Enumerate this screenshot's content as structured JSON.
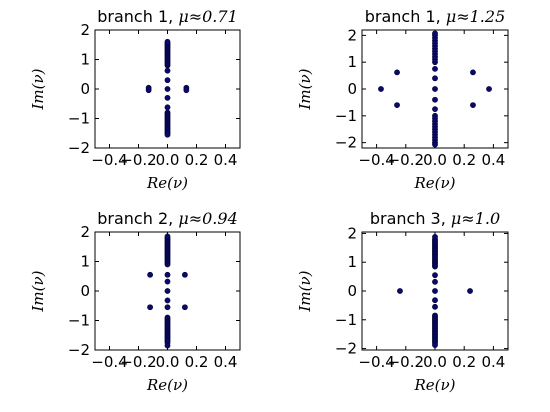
{
  "chart_data": [
    {
      "type": "scatter",
      "title": "branch 1, μ≈0.71",
      "title_text": "branch 1, ",
      "title_math": "μ≈0.71",
      "xlabel": "Re(ν)",
      "ylabel": "Im(ν)",
      "xlim": [
        -0.5,
        0.5
      ],
      "ylim": [
        -2,
        2
      ],
      "xticks": [
        "−0.4",
        "−0.2",
        "0.0",
        "0.2",
        "0.4"
      ],
      "yticks": [
        "−2",
        "−1",
        "0",
        "1",
        "2"
      ],
      "xtick_values": [
        -0.4,
        -0.2,
        0.0,
        0.2,
        0.4
      ],
      "ytick_values": [
        -2,
        -1,
        0,
        1,
        2
      ],
      "points": [
        [
          -0.13,
          0.04
        ],
        [
          -0.13,
          -0.04
        ],
        [
          0.13,
          0.04
        ],
        [
          0.13,
          -0.04
        ],
        [
          0.0,
          0.0
        ],
        [
          0.0,
          0.3
        ],
        [
          0.0,
          -0.3
        ],
        [
          0.0,
          0.62
        ],
        [
          0.0,
          -0.62
        ],
        [
          0.0,
          0.8
        ],
        [
          0.0,
          0.85
        ],
        [
          0.0,
          0.9
        ],
        [
          0.0,
          0.95
        ],
        [
          0.0,
          1.0
        ],
        [
          0.0,
          1.05
        ],
        [
          0.0,
          1.1
        ],
        [
          0.0,
          1.15
        ],
        [
          0.0,
          1.2
        ],
        [
          0.0,
          1.25
        ],
        [
          0.0,
          1.3
        ],
        [
          0.0,
          1.35
        ],
        [
          0.0,
          1.4
        ],
        [
          0.0,
          1.45
        ],
        [
          0.0,
          1.5
        ],
        [
          0.0,
          1.55
        ],
        [
          0.0,
          1.6
        ],
        [
          0.0,
          -0.8
        ],
        [
          0.0,
          -0.85
        ],
        [
          0.0,
          -0.9
        ],
        [
          0.0,
          -0.95
        ],
        [
          0.0,
          -1.0
        ],
        [
          0.0,
          -1.05
        ],
        [
          0.0,
          -1.1
        ],
        [
          0.0,
          -1.15
        ],
        [
          0.0,
          -1.2
        ],
        [
          0.0,
          -1.25
        ],
        [
          0.0,
          -1.3
        ],
        [
          0.0,
          -1.35
        ],
        [
          0.0,
          -1.4
        ],
        [
          0.0,
          -1.45
        ],
        [
          0.0,
          -1.5
        ],
        [
          0.0,
          -1.55
        ]
      ]
    },
    {
      "type": "scatter",
      "title": "branch 1, μ≈1.25",
      "title_text": "branch 1, ",
      "title_math": "μ≈1.25",
      "xlabel": "Re(ν)",
      "ylabel": "Im(ν)",
      "xlim": [
        -0.5,
        0.5
      ],
      "ylim": [
        -2.2,
        2.2
      ],
      "xticks": [
        "−0.4",
        "−0.2",
        "0.0",
        "0.2",
        "0.4"
      ],
      "yticks": [
        "−2",
        "−1",
        "0",
        "1",
        "2"
      ],
      "xtick_values": [
        -0.4,
        -0.2,
        0.0,
        0.2,
        0.4
      ],
      "ytick_values": [
        -2,
        -1,
        0,
        1,
        2
      ],
      "points": [
        [
          -0.37,
          0.0
        ],
        [
          0.37,
          0.0
        ],
        [
          -0.26,
          0.62
        ],
        [
          -0.26,
          -0.6
        ],
        [
          0.26,
          0.62
        ],
        [
          0.26,
          -0.6
        ],
        [
          0.0,
          0.0
        ],
        [
          0.0,
          0.4
        ],
        [
          0.0,
          -0.4
        ],
        [
          0.0,
          0.75
        ],
        [
          0.0,
          -0.75
        ],
        [
          0.0,
          1.0
        ],
        [
          0.0,
          1.1
        ],
        [
          0.0,
          1.2
        ],
        [
          0.0,
          1.3
        ],
        [
          0.0,
          1.4
        ],
        [
          0.0,
          1.5
        ],
        [
          0.0,
          1.6
        ],
        [
          0.0,
          1.7
        ],
        [
          0.0,
          1.8
        ],
        [
          0.0,
          1.9
        ],
        [
          0.0,
          2.0
        ],
        [
          0.0,
          2.07
        ],
        [
          0.0,
          -1.0
        ],
        [
          0.0,
          -1.1
        ],
        [
          0.0,
          -1.2
        ],
        [
          0.0,
          -1.3
        ],
        [
          0.0,
          -1.4
        ],
        [
          0.0,
          -1.5
        ],
        [
          0.0,
          -1.6
        ],
        [
          0.0,
          -1.7
        ],
        [
          0.0,
          -1.8
        ],
        [
          0.0,
          -1.9
        ],
        [
          0.0,
          -2.0
        ],
        [
          0.0,
          -2.07
        ]
      ]
    },
    {
      "type": "scatter",
      "title": "branch 2, μ≈0.94",
      "title_text": "branch 2, ",
      "title_math": "μ≈0.94",
      "xlabel": "Re(ν)",
      "ylabel": "Im(ν)",
      "xlim": [
        -0.5,
        0.5
      ],
      "ylim": [
        -2,
        2
      ],
      "xticks": [
        "−0.4",
        "−0.2",
        "0.0",
        "0.2",
        "0.4"
      ],
      "yticks": [
        "−2",
        "−1",
        "0",
        "1",
        "2"
      ],
      "xtick_values": [
        -0.4,
        -0.2,
        0.0,
        0.2,
        0.4
      ],
      "ytick_values": [
        -2,
        -1,
        0,
        1,
        2
      ],
      "points": [
        [
          -0.12,
          0.55
        ],
        [
          0.12,
          0.55
        ],
        [
          -0.12,
          -0.55
        ],
        [
          0.12,
          -0.55
        ],
        [
          0.0,
          0.0
        ],
        [
          0.0,
          0.32
        ],
        [
          0.0,
          -0.32
        ],
        [
          0.0,
          0.55
        ],
        [
          0.0,
          -0.55
        ],
        [
          0.0,
          0.9
        ],
        [
          0.0,
          0.95
        ],
        [
          0.0,
          1.0
        ],
        [
          0.0,
          1.05
        ],
        [
          0.0,
          1.1
        ],
        [
          0.0,
          1.15
        ],
        [
          0.0,
          1.2
        ],
        [
          0.0,
          1.25
        ],
        [
          0.0,
          1.3
        ],
        [
          0.0,
          1.35
        ],
        [
          0.0,
          1.4
        ],
        [
          0.0,
          1.45
        ],
        [
          0.0,
          1.5
        ],
        [
          0.0,
          1.55
        ],
        [
          0.0,
          1.6
        ],
        [
          0.0,
          1.65
        ],
        [
          0.0,
          1.7
        ],
        [
          0.0,
          1.75
        ],
        [
          0.0,
          1.8
        ],
        [
          0.0,
          1.85
        ],
        [
          0.0,
          -0.9
        ],
        [
          0.0,
          -0.95
        ],
        [
          0.0,
          -1.0
        ],
        [
          0.0,
          -1.05
        ],
        [
          0.0,
          -1.1
        ],
        [
          0.0,
          -1.15
        ],
        [
          0.0,
          -1.2
        ],
        [
          0.0,
          -1.25
        ],
        [
          0.0,
          -1.3
        ],
        [
          0.0,
          -1.35
        ],
        [
          0.0,
          -1.4
        ],
        [
          0.0,
          -1.45
        ],
        [
          0.0,
          -1.5
        ],
        [
          0.0,
          -1.55
        ],
        [
          0.0,
          -1.6
        ],
        [
          0.0,
          -1.65
        ],
        [
          0.0,
          -1.7
        ],
        [
          0.0,
          -1.75
        ],
        [
          0.0,
          -1.85
        ]
      ]
    },
    {
      "type": "scatter",
      "title": "branch 3, μ≈1.0",
      "title_text": "branch 3, ",
      "title_math": "μ≈1.0",
      "xlabel": "Re(ν)",
      "ylabel": "Im(ν)",
      "xlim": [
        -0.5,
        0.5
      ],
      "ylim": [
        -2.05,
        2.05
      ],
      "xticks": [
        "−0.4",
        "−0.2",
        "0.0",
        "0.2",
        "0.4"
      ],
      "yticks": [
        "−2",
        "−1",
        "0",
        "1",
        "2"
      ],
      "xtick_values": [
        -0.4,
        -0.2,
        0.0,
        0.2,
        0.4
      ],
      "ytick_values": [
        -2,
        -1,
        0,
        1,
        2
      ],
      "points": [
        [
          -0.24,
          0.0
        ],
        [
          0.24,
          0.0
        ],
        [
          0.0,
          0.0
        ],
        [
          0.0,
          0.32
        ],
        [
          0.0,
          -0.32
        ],
        [
          0.0,
          0.55
        ],
        [
          0.0,
          -0.55
        ],
        [
          0.0,
          0.85
        ],
        [
          0.0,
          0.9
        ],
        [
          0.0,
          0.95
        ],
        [
          0.0,
          1.0
        ],
        [
          0.0,
          1.05
        ],
        [
          0.0,
          1.1
        ],
        [
          0.0,
          1.15
        ],
        [
          0.0,
          1.2
        ],
        [
          0.0,
          1.25
        ],
        [
          0.0,
          1.3
        ],
        [
          0.0,
          1.35
        ],
        [
          0.0,
          1.4
        ],
        [
          0.0,
          1.45
        ],
        [
          0.0,
          1.5
        ],
        [
          0.0,
          1.55
        ],
        [
          0.0,
          1.6
        ],
        [
          0.0,
          1.65
        ],
        [
          0.0,
          1.7
        ],
        [
          0.0,
          1.75
        ],
        [
          0.0,
          1.8
        ],
        [
          0.0,
          1.88
        ],
        [
          0.0,
          -0.85
        ],
        [
          0.0,
          -0.9
        ],
        [
          0.0,
          -0.95
        ],
        [
          0.0,
          -1.0
        ],
        [
          0.0,
          -1.05
        ],
        [
          0.0,
          -1.1
        ],
        [
          0.0,
          -1.15
        ],
        [
          0.0,
          -1.2
        ],
        [
          0.0,
          -1.25
        ],
        [
          0.0,
          -1.3
        ],
        [
          0.0,
          -1.35
        ],
        [
          0.0,
          -1.4
        ],
        [
          0.0,
          -1.45
        ],
        [
          0.0,
          -1.5
        ],
        [
          0.0,
          -1.55
        ],
        [
          0.0,
          -1.6
        ],
        [
          0.0,
          -1.65
        ],
        [
          0.0,
          -1.7
        ],
        [
          0.0,
          -1.75
        ],
        [
          0.0,
          -1.8
        ],
        [
          0.0,
          -1.88
        ]
      ]
    }
  ],
  "colors": {
    "marker_fill": "#0a0a6e",
    "marker_edge": "#000033",
    "axes": "#000000",
    "background": "#ffffff"
  },
  "grid": false,
  "legend": "none"
}
